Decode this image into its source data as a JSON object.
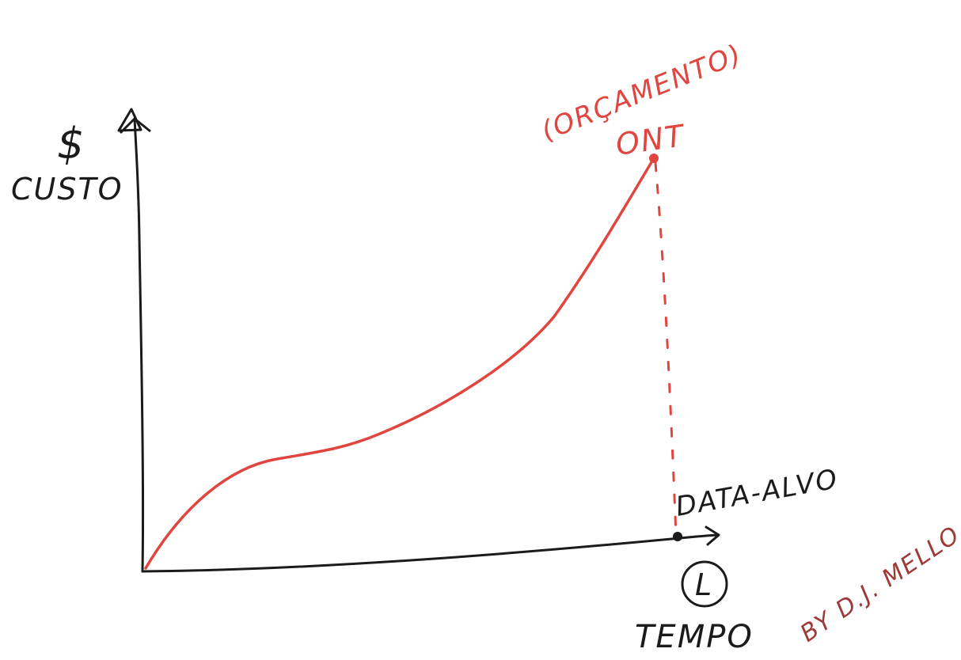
{
  "y_axis": {
    "symbol": "$",
    "label": "CUSTO"
  },
  "x_axis": {
    "label": "TEMPO",
    "marker": "L"
  },
  "target": {
    "label": "DATA-ALVO"
  },
  "annotation": {
    "line1": "(ORÇAMENTO)",
    "line2": "ONT"
  },
  "signature": "BY D.J. MELLO",
  "colors": {
    "ink": "#1b1b1b",
    "curve": "#e0463f",
    "signature": "#9c3a36"
  }
}
